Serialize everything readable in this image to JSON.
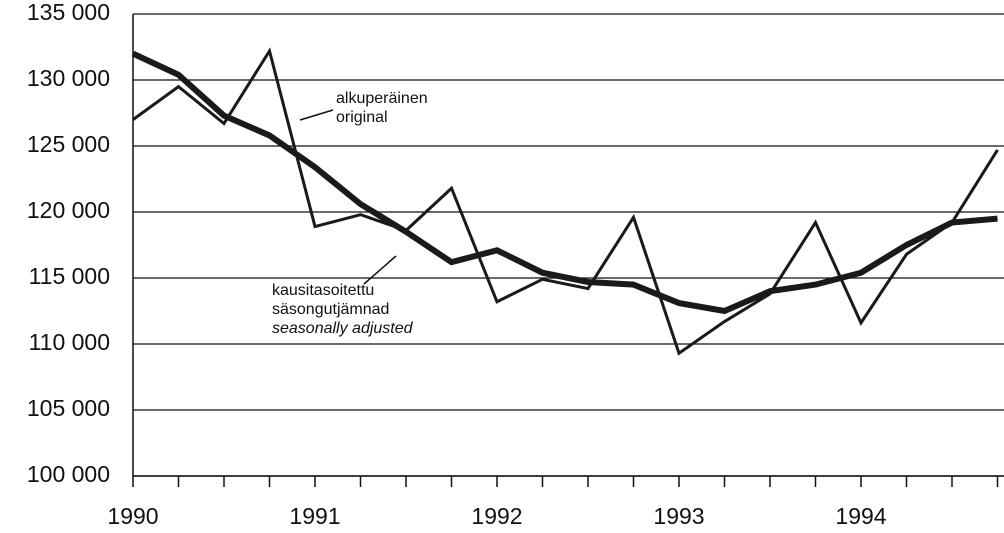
{
  "chart_data": {
    "type": "line",
    "categories": [
      "1990",
      null,
      null,
      null,
      "1991",
      null,
      null,
      null,
      "1992",
      null,
      null,
      null,
      "1993",
      null,
      null,
      null,
      "1994",
      null,
      null,
      null
    ],
    "series": [
      {
        "color": "#1a1a1a",
        "width": 3,
        "values": [
          127000,
          129500,
          126700,
          132200,
          118900,
          119800,
          118600,
          121800,
          113200,
          114900,
          114200,
          119600,
          109300,
          111700,
          113800,
          119200,
          111600,
          116800,
          119200,
          124700
        ]
      },
      {
        "color": "#1a1a1a",
        "width": 6,
        "values": [
          132000,
          130400,
          127300,
          125800,
          123400,
          120600,
          118500,
          116200,
          117100,
          115400,
          114700,
          114500,
          113100,
          112500,
          114000,
          114500,
          115400,
          117500,
          119200,
          119500
        ]
      }
    ],
    "annotations": [
      [
        "alkuperäinen",
        "original"
      ],
      [
        "kausitasoitettu",
        "säsongutjämnad",
        "seasonally adjusted"
      ]
    ],
    "ylim": [
      100000,
      135000
    ],
    "yticks": [
      {
        "value": 100000,
        "label": "100 000"
      },
      {
        "value": 105000,
        "label": "105 000"
      },
      {
        "value": 110000,
        "label": "110 000"
      },
      {
        "value": 115000,
        "label": "115 000"
      },
      {
        "value": 120000,
        "label": "120 000"
      },
      {
        "value": 125000,
        "label": "125 000"
      },
      {
        "value": 130000,
        "label": "130 000"
      },
      {
        "value": 135000,
        "label": "135 000"
      }
    ],
    "grid": true
  }
}
